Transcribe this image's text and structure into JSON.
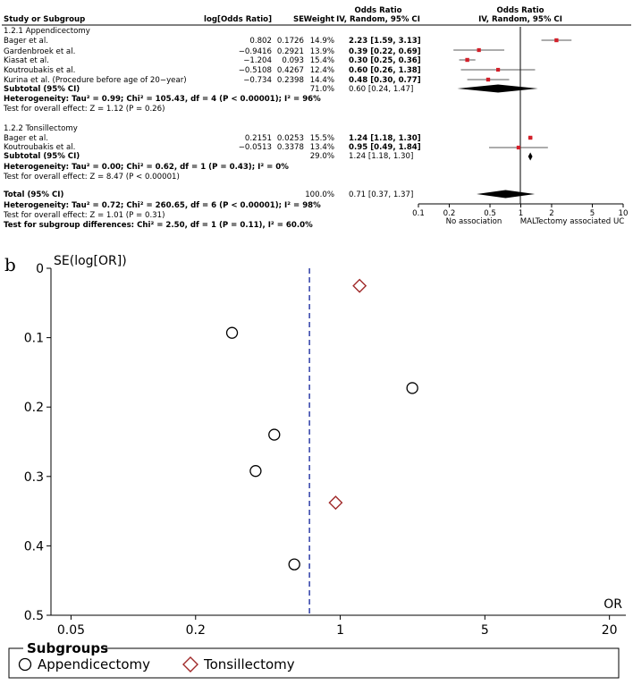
{
  "forest": {
    "headers": {
      "study": "Study or Subgroup",
      "log_or": "log[Odds Ratio]",
      "se": "SE",
      "weight": "Weight",
      "or_title": "Odds Ratio",
      "or_method": "IV, Random, 95% CI",
      "plot_title": "Odds Ratio",
      "plot_method": "IV, Random, 95% CI"
    },
    "subgroups": [
      {
        "title": "1.2.1 Appendicectomy",
        "studies": [
          {
            "name": "Bager et al.",
            "log_or": "0.802",
            "se": "0.1726",
            "weight": "14.9%",
            "ci_text": "2.23 [1.59, 3.13]",
            "or": 2.23,
            "lo": 1.59,
            "hi": 3.13
          },
          {
            "name": "Gardenbroek et al.",
            "log_or": "−0.9416",
            "se": "0.2921",
            "weight": "13.9%",
            "ci_text": "0.39 [0.22, 0.69]",
            "or": 0.39,
            "lo": 0.22,
            "hi": 0.69
          },
          {
            "name": "Kiasat et al.",
            "log_or": "−1.204",
            "se": "0.093",
            "weight": "15.4%",
            "ci_text": "0.30 [0.25, 0.36]",
            "or": 0.3,
            "lo": 0.25,
            "hi": 0.36
          },
          {
            "name": "Koutroubakis et al.",
            "log_or": "−0.5108",
            "se": "0.4267",
            "weight": "12.4%",
            "ci_text": "0.60 [0.26, 1.38]",
            "or": 0.6,
            "lo": 0.26,
            "hi": 1.38
          },
          {
            "name": "Kurina et al. (Procedure before age of 20−year)",
            "log_or": "−0.734",
            "se": "0.2398",
            "weight": "14.4%",
            "ci_text": "0.48 [0.30, 0.77]",
            "or": 0.48,
            "lo": 0.3,
            "hi": 0.77
          }
        ],
        "subtotal": {
          "label": "Subtotal (95% CI)",
          "weight": "71.0%",
          "ci_text": "0.60 [0.24, 1.47]",
          "or": 0.6,
          "lo": 0.24,
          "hi": 1.47
        },
        "heterogeneity": "Heterogeneity: Tau² = 0.99; Chi² = 105.43, df = 4 (P < 0.00001); I² = 96%",
        "overall_effect": "Test for overall effect: Z = 1.12 (P = 0.26)"
      },
      {
        "title": "1.2.2 Tonsillectomy",
        "studies": [
          {
            "name": "Bager et al.",
            "log_or": "0.2151",
            "se": "0.0253",
            "weight": "15.5%",
            "ci_text": "1.24 [1.18, 1.30]",
            "or": 1.24,
            "lo": 1.18,
            "hi": 1.3
          },
          {
            "name": "Koutroubakis et al.",
            "log_or": "−0.0513",
            "se": "0.3378",
            "weight": "13.4%",
            "ci_text": "0.95 [0.49, 1.84]",
            "or": 0.95,
            "lo": 0.49,
            "hi": 1.84
          }
        ],
        "subtotal": {
          "label": "Subtotal (95% CI)",
          "weight": "29.0%",
          "ci_text": "1.24 [1.18, 1.30]",
          "or": 1.24,
          "lo": 1.18,
          "hi": 1.3
        },
        "heterogeneity": "Heterogeneity: Tau² = 0.00; Chi² = 0.62, df = 1 (P = 0.43); I² = 0%",
        "overall_effect": "Test for overall effect: Z = 8.47 (P < 0.00001)"
      }
    ],
    "total": {
      "label": "Total (95% CI)",
      "weight": "100.0%",
      "ci_text": "0.71 [0.37, 1.37]",
      "or": 0.71,
      "lo": 0.37,
      "hi": 1.37
    },
    "total_heterogeneity": "Heterogeneity: Tau² = 0.72; Chi² = 260.65, df = 6 (P < 0.00001); I² = 98%",
    "total_overall_effect": "Test for overall effect: Z = 1.01 (P = 0.31)",
    "subgroup_differences": "Test for subgroup differences: Chi² = 2.50, df = 1 (P = 0.11), I² = 60.0%",
    "axis_ticks": [
      {
        "v": 0.1,
        "label": "0.1"
      },
      {
        "v": 0.2,
        "label": "0.2"
      },
      {
        "v": 0.5,
        "label": "0.5"
      },
      {
        "v": 1,
        "label": "1"
      },
      {
        "v": 2,
        "label": "2"
      },
      {
        "v": 5,
        "label": "5"
      },
      {
        "v": 10,
        "label": "10"
      }
    ],
    "favours_left": "No association",
    "favours_right": "MALTectomy associated UC",
    "marker_color": "#d3202a"
  },
  "funnel": {
    "panel_label": "b",
    "ylabel": "SE(log[OR])",
    "xlabel": "OR",
    "x_ticks": [
      {
        "v": 0.05,
        "label": "0.05"
      },
      {
        "v": 0.2,
        "label": "0.2"
      },
      {
        "v": 1,
        "label": "1"
      },
      {
        "v": 5,
        "label": "5"
      },
      {
        "v": 20,
        "label": "20"
      }
    ],
    "y_ticks": [
      {
        "v": 0,
        "label": "0"
      },
      {
        "v": 0.1,
        "label": "0.1"
      },
      {
        "v": 0.2,
        "label": "0.2"
      },
      {
        "v": 0.3,
        "label": "0.3"
      },
      {
        "v": 0.4,
        "label": "0.4"
      },
      {
        "v": 0.5,
        "label": "0.5"
      }
    ],
    "legend_title": "Subgroups",
    "legend_items": [
      {
        "label": "Appendicectomy",
        "shape": "circle"
      },
      {
        "label": "Tonsillectomy",
        "shape": "diamond"
      }
    ],
    "pooled_or": 0.71,
    "line_color": "#2f3fa8",
    "diamond_color": "#a02a2a"
  },
  "chart_data": [
    {
      "type": "scatter",
      "subtype": "forest",
      "x_scale": "log",
      "xlim": [
        0.1,
        10
      ],
      "series": [
        {
          "name": "1.2.1 Appendicectomy",
          "points": [
            {
              "study": "Bager et al.",
              "or": 2.23,
              "lo": 1.59,
              "hi": 3.13,
              "weight": 14.9
            },
            {
              "study": "Gardenbroek et al.",
              "or": 0.39,
              "lo": 0.22,
              "hi": 0.69,
              "weight": 13.9
            },
            {
              "study": "Kiasat et al.",
              "or": 0.3,
              "lo": 0.25,
              "hi": 0.36,
              "weight": 15.4
            },
            {
              "study": "Koutroubakis et al.",
              "or": 0.6,
              "lo": 0.26,
              "hi": 1.38,
              "weight": 12.4
            },
            {
              "study": "Kurina et al. (Procedure before age of 20−year)",
              "or": 0.48,
              "lo": 0.3,
              "hi": 0.77,
              "weight": 14.4
            }
          ]
        },
        {
          "name": "1.2.2 Tonsillectomy",
          "points": [
            {
              "study": "Bager et al.",
              "or": 1.24,
              "lo": 1.18,
              "hi": 1.3,
              "weight": 15.5
            },
            {
              "study": "Koutroubakis et al.",
              "or": 0.95,
              "lo": 0.49,
              "hi": 1.84,
              "weight": 13.4
            }
          ]
        }
      ]
    },
    {
      "type": "scatter",
      "subtype": "funnel",
      "x_scale": "log",
      "xlim": [
        0.04,
        24
      ],
      "ylim": [
        0,
        0.5
      ],
      "y_reversed": true,
      "xlabel": "OR",
      "ylabel": "SE(log[OR])",
      "legend": "bottom",
      "series": [
        {
          "name": "Appendicectomy",
          "x": [
            2.23,
            0.39,
            0.3,
            0.6,
            0.48
          ],
          "y": [
            0.1726,
            0.2921,
            0.093,
            0.4267,
            0.2398
          ]
        },
        {
          "name": "Tonsillectomy",
          "x": [
            1.24,
            0.95
          ],
          "y": [
            0.0253,
            0.3378
          ]
        }
      ]
    }
  ]
}
